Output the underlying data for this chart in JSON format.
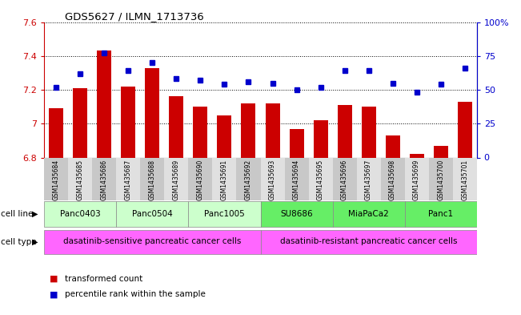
{
  "title": "GDS5627 / ILMN_1713736",
  "samples": [
    "GSM1435684",
    "GSM1435685",
    "GSM1435686",
    "GSM1435687",
    "GSM1435688",
    "GSM1435689",
    "GSM1435690",
    "GSM1435691",
    "GSM1435692",
    "GSM1435693",
    "GSM1435694",
    "GSM1435695",
    "GSM1435696",
    "GSM1435697",
    "GSM1435698",
    "GSM1435699",
    "GSM1435700",
    "GSM1435701"
  ],
  "bar_values": [
    7.09,
    7.21,
    7.43,
    7.22,
    7.33,
    7.16,
    7.1,
    7.05,
    7.12,
    7.12,
    6.97,
    7.02,
    7.11,
    7.1,
    6.93,
    6.82,
    6.87,
    7.13
  ],
  "percentile_values": [
    52,
    62,
    77,
    64,
    70,
    58,
    57,
    54,
    56,
    55,
    50,
    52,
    64,
    64,
    55,
    48,
    54,
    66
  ],
  "bar_color": "#cc0000",
  "percentile_color": "#0000cc",
  "ylim_left": [
    6.8,
    7.6
  ],
  "ylim_right": [
    0,
    100
  ],
  "yticks_left": [
    6.8,
    7.0,
    7.2,
    7.4,
    7.6
  ],
  "yticks_right": [
    0,
    25,
    50,
    75,
    100
  ],
  "ytick_labels_right": [
    "0",
    "25",
    "50",
    "75",
    "100%"
  ],
  "cell_lines": [
    {
      "name": "Panc0403",
      "start": 0,
      "end": 2,
      "color": "#ccffcc"
    },
    {
      "name": "Panc0504",
      "start": 3,
      "end": 5,
      "color": "#ccffcc"
    },
    {
      "name": "Panc1005",
      "start": 6,
      "end": 8,
      "color": "#ccffcc"
    },
    {
      "name": "SU8686",
      "start": 9,
      "end": 11,
      "color": "#66ee66"
    },
    {
      "name": "MiaPaCa2",
      "start": 12,
      "end": 14,
      "color": "#66ee66"
    },
    {
      "name": "Panc1",
      "start": 15,
      "end": 17,
      "color": "#66ee66"
    }
  ],
  "cell_types": [
    {
      "name": "dasatinib-sensitive pancreatic cancer cells",
      "start": 0,
      "end": 8,
      "color": "#ff66ff"
    },
    {
      "name": "dasatinib-resistant pancreatic cancer cells",
      "start": 9,
      "end": 17,
      "color": "#ff66ff"
    }
  ],
  "legend_bar_label": "transformed count",
  "legend_pct_label": "percentile rank within the sample",
  "cell_line_label": "cell line",
  "cell_type_label": "cell type",
  "sample_bg_even": "#c8c8c8",
  "sample_bg_odd": "#e0e0e0"
}
